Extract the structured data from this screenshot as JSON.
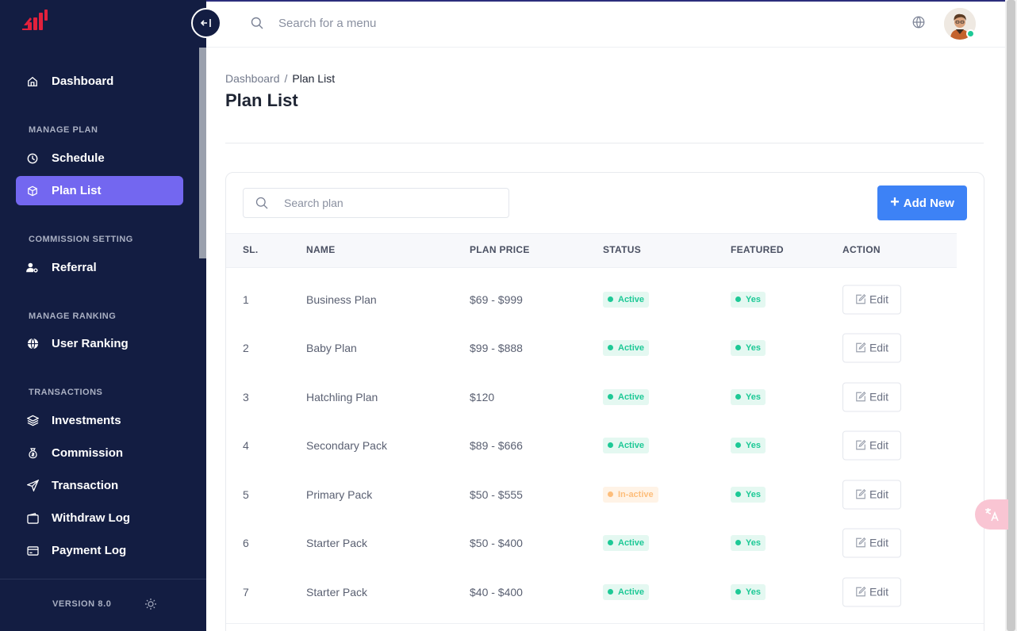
{
  "sidebar": {
    "items": {
      "dashboard": "Dashboard",
      "schedule": "Schedule",
      "plan_list": "Plan List",
      "referral": "Referral",
      "user_ranking": "User Ranking",
      "investments": "Investments",
      "commission": "Commission",
      "transaction": "Transaction",
      "withdraw_log": "Withdraw Log",
      "payment_log": "Payment Log"
    },
    "sections": {
      "manage_plan": "MANAGE PLAN",
      "commission_setting": "COMMISSION SETTING",
      "manage_ranking": "MANAGE RANKING",
      "transactions": "TRANSACTIONS"
    },
    "version": "VERSION 8.0",
    "active_color": "#7367f0",
    "bg_color": "#131d42"
  },
  "topbar": {
    "search_placeholder": "Search for a menu"
  },
  "page": {
    "breadcrumb_root": "Dashboard",
    "breadcrumb_sep": "/",
    "breadcrumb_current": "Plan List",
    "title": "Plan List"
  },
  "toolbar": {
    "search_placeholder": "Search plan",
    "add_label": "Add New"
  },
  "table": {
    "headers": [
      "SL.",
      "NAME",
      "PLAN PRICE",
      "STATUS",
      "FEATURED",
      "ACTION"
    ],
    "rows": [
      {
        "sl": "1",
        "name": "Business Plan",
        "price": "$69 - $999",
        "status": "Active",
        "featured": "Yes",
        "action": "Edit"
      },
      {
        "sl": "2",
        "name": "Baby Plan",
        "price": "$99 - $888",
        "status": "Active",
        "featured": "Yes",
        "action": "Edit"
      },
      {
        "sl": "3",
        "name": "Hatchling Plan",
        "price": "$120",
        "status": "Active",
        "featured": "Yes",
        "action": "Edit"
      },
      {
        "sl": "4",
        "name": "Secondary Pack",
        "price": "$89 - $666",
        "status": "Active",
        "featured": "Yes",
        "action": "Edit"
      },
      {
        "sl": "5",
        "name": "Primary Pack",
        "price": "$50 - $555",
        "status": "In-active",
        "featured": "Yes",
        "action": "Edit"
      },
      {
        "sl": "6",
        "name": "Starter Pack",
        "price": "$50 - $400",
        "status": "Active",
        "featured": "Yes",
        "action": "Edit"
      },
      {
        "sl": "7",
        "name": "Starter Pack",
        "price": "$40 - $400",
        "status": "Active",
        "featured": "Yes",
        "action": "Edit"
      }
    ]
  },
  "colors": {
    "primary_button": "#3d82f6",
    "status_active": "#1dc996",
    "status_inactive": "#fdbd7a"
  }
}
